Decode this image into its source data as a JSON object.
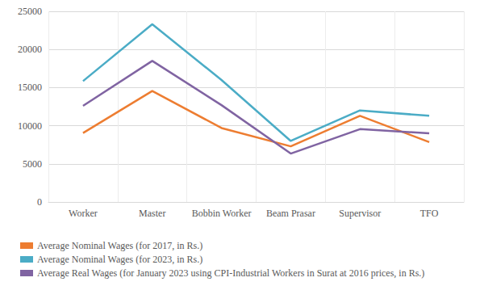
{
  "chart_data": {
    "type": "line",
    "categories": [
      "Worker",
      "Master",
      "Bobbin Worker",
      "Beam Prasar",
      "Supervisor",
      "TFO"
    ],
    "series": [
      {
        "name": "Average Nominal Wages (for 2017, in Rs.)",
        "color": "#ed7d31",
        "values": [
          9050,
          14550,
          9700,
          7300,
          11300,
          7850
        ]
      },
      {
        "name": "Average Nominal Wages (for 2023, in Rs.)",
        "color": "#4bacc6",
        "values": [
          15850,
          23300,
          16000,
          8000,
          12000,
          11300
        ]
      },
      {
        "name": "Average Real Wages (for January 2023 using CPI-Industrial Workers in Surat at 2016 prices, in Rs.)",
        "color": "#8064a2",
        "values": [
          12600,
          18500,
          12700,
          6350,
          9550,
          9000
        ]
      }
    ],
    "ylim": [
      0,
      25000
    ],
    "yticks": [
      0,
      5000,
      10000,
      15000,
      20000,
      25000
    ],
    "grid": true,
    "legend": "bottom"
  }
}
